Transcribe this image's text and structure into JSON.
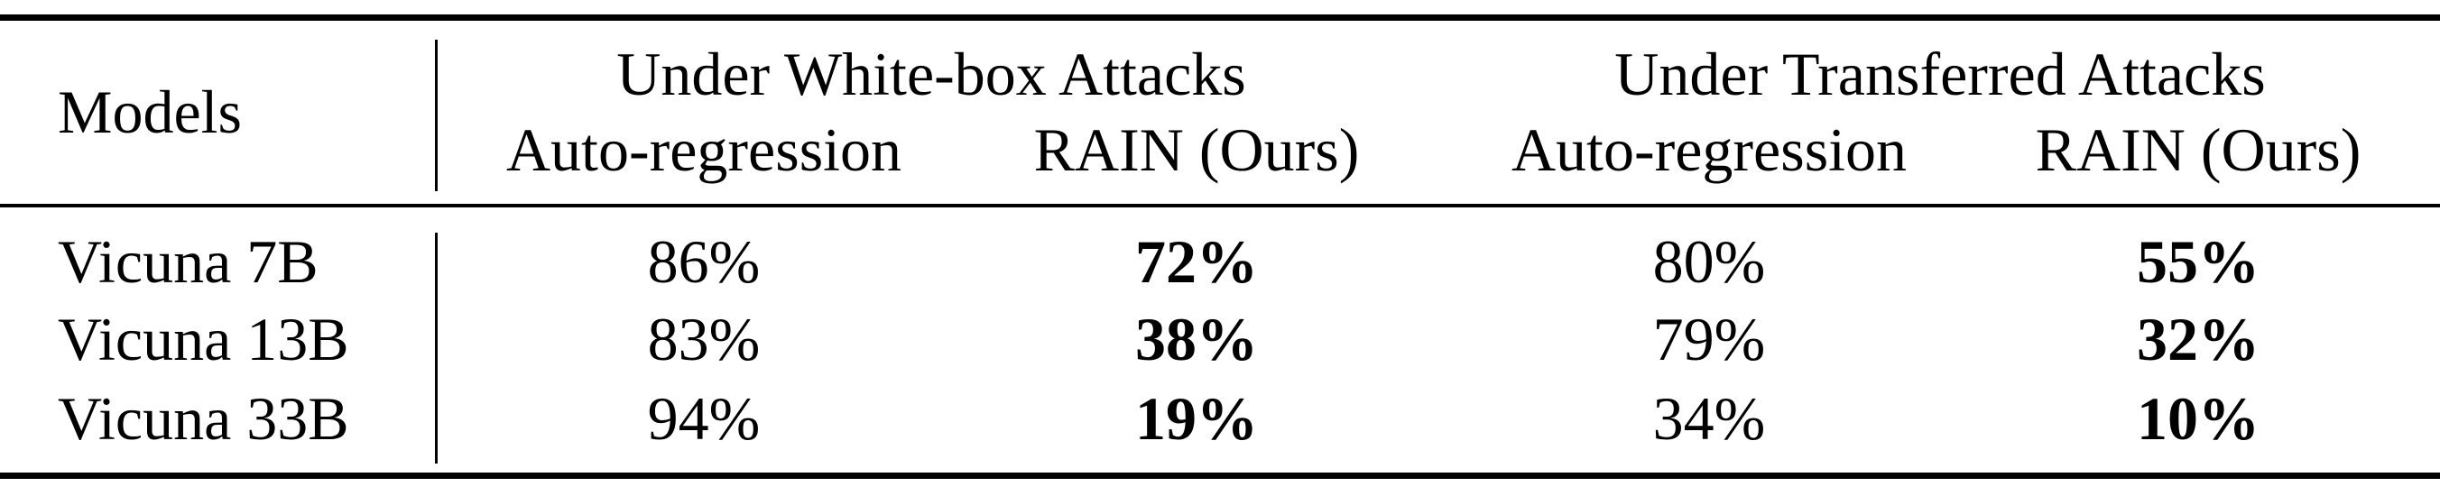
{
  "table": {
    "header": {
      "models": "Models",
      "group_white_box": "Under White-box Attacks",
      "group_transferred": "Under Transferred Attacks",
      "wb_auto": "Auto-regression",
      "wb_rain": "RAIN (Ours)",
      "tr_auto": "Auto-regression",
      "tr_rain": "RAIN (Ours)"
    },
    "rows": [
      {
        "model": "Vicuna 7B",
        "wb_auto": "86%",
        "wb_rain": "72%",
        "tr_auto": "80%",
        "tr_rain": "55%"
      },
      {
        "model": "Vicuna 13B",
        "wb_auto": "83%",
        "wb_rain": "38%",
        "tr_auto": "79%",
        "tr_rain": "32%"
      },
      {
        "model": "Vicuna 33B",
        "wb_auto": "94%",
        "wb_rain": "19%",
        "tr_auto": "34%",
        "tr_rain": "10%"
      }
    ]
  }
}
